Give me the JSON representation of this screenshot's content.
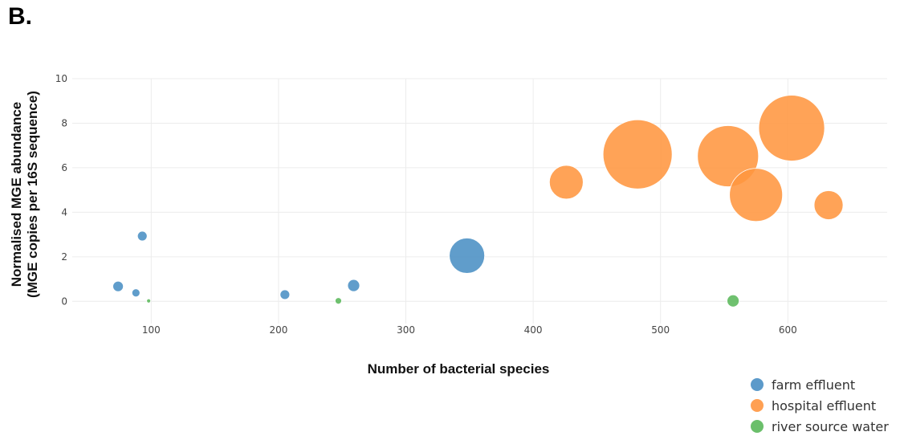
{
  "panel_label": "B.",
  "chart_data": {
    "type": "scatter",
    "title": "",
    "xlabel": "Number of bacterial species",
    "ylabel_lines": [
      "Normalised MGE abundance",
      "(MGE copies per 16S sequence)"
    ],
    "xlim": [
      38,
      678
    ],
    "ylim": [
      -1,
      10
    ],
    "x_ticks": [
      100,
      200,
      300,
      400,
      500,
      600
    ],
    "y_ticks": [
      0,
      2,
      4,
      6,
      8,
      10
    ],
    "grid": true,
    "legend_position": "bottom-right",
    "colors": {
      "farm effluent": "#4a8fc4",
      "hospital effluent": "#ff9640",
      "river source water": "#5bb85b"
    },
    "series": [
      {
        "name": "farm effluent",
        "points": [
          {
            "x": 93,
            "y": 2.93,
            "size": 6
          },
          {
            "x": 74,
            "y": 0.67,
            "size": 6.5
          },
          {
            "x": 88,
            "y": 0.38,
            "size": 5
          },
          {
            "x": 205,
            "y": 0.3,
            "size": 6
          },
          {
            "x": 259,
            "y": 0.71,
            "size": 7.5
          },
          {
            "x": 348,
            "y": 2.05,
            "size": 22
          }
        ]
      },
      {
        "name": "hospital effluent",
        "points": [
          {
            "x": 426,
            "y": 5.35,
            "size": 21
          },
          {
            "x": 482,
            "y": 6.6,
            "size": 43
          },
          {
            "x": 553,
            "y": 6.52,
            "size": 38
          },
          {
            "x": 575,
            "y": 4.78,
            "size": 33
          },
          {
            "x": 603,
            "y": 7.78,
            "size": 41
          },
          {
            "x": 632,
            "y": 4.32,
            "size": 18
          }
        ]
      },
      {
        "name": "river source water",
        "points": [
          {
            "x": 98,
            "y": 0.02,
            "size": 2.5
          },
          {
            "x": 247,
            "y": 0.02,
            "size": 4
          },
          {
            "x": 557,
            "y": 0.02,
            "size": 7.5
          }
        ]
      }
    ]
  }
}
